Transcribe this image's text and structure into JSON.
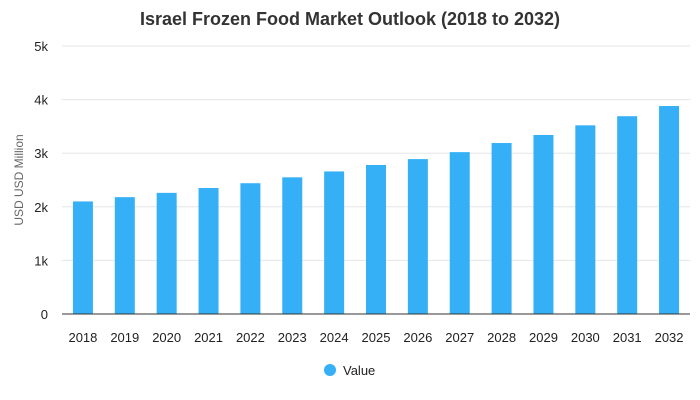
{
  "chart_data": {
    "type": "bar",
    "title": "Israel Frozen Food Market Outlook (2018 to 2032)",
    "xlabel": "",
    "ylabel": "USD USD Million",
    "categories": [
      "2018",
      "2019",
      "2020",
      "2021",
      "2022",
      "2023",
      "2024",
      "2025",
      "2026",
      "2027",
      "2028",
      "2029",
      "2030",
      "2031",
      "2032"
    ],
    "series": [
      {
        "name": "Value",
        "values": [
          2100,
          2180,
          2260,
          2350,
          2440,
          2550,
          2660,
          2780,
          2890,
          3020,
          3190,
          3340,
          3520,
          3690,
          3880
        ]
      }
    ],
    "ylim": [
      0,
      5000
    ],
    "yticks": [
      0,
      1000,
      2000,
      3000,
      4000,
      5000
    ],
    "ytick_labels": [
      "0",
      "1k",
      "2k",
      "3k",
      "4k",
      "5k"
    ],
    "grid": true,
    "legend_position": "bottom-center",
    "colors": {
      "bar": "#35b0f6"
    }
  }
}
